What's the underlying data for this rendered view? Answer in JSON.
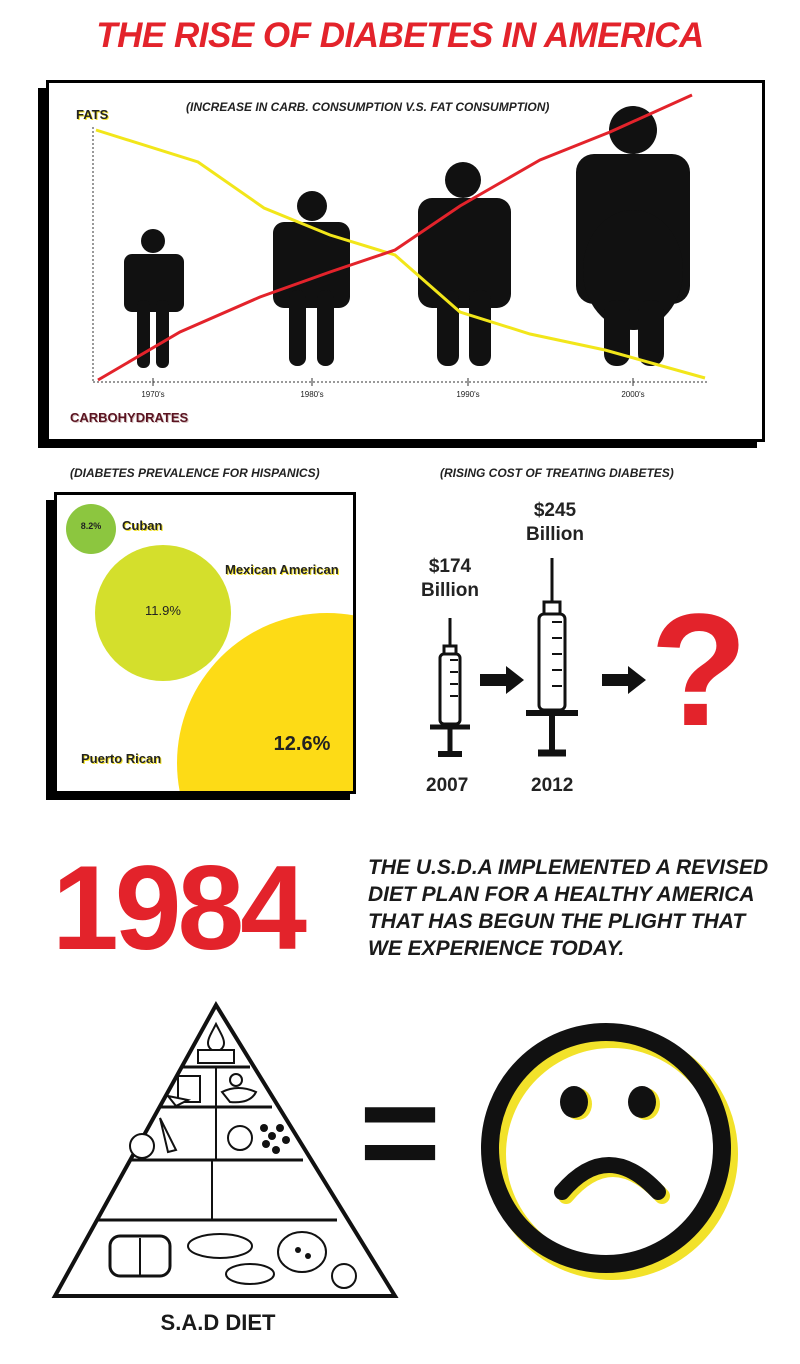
{
  "title": "THE RISE OF DIABETES IN AMERICA",
  "colors": {
    "red": "#e3232b",
    "yellow": "#f2e61a",
    "lime": "#d4df2c",
    "green": "#8cc63f",
    "gold": "#fddb16"
  },
  "trend_chart": {
    "subtitle": "(INCREASE IN CARB. CONSUMPTION V.S. FAT CONSUMPTION)",
    "label_fats": "FATS",
    "label_carbs": "CARBOHYDRATES",
    "ticks": [
      "1970's",
      "1980's",
      "1990's",
      "2000's"
    ]
  },
  "hispanic": {
    "caption": "(DIABETES PREVALENCE FOR HISPANICS)",
    "groups": [
      {
        "name": "Cuban",
        "value": "8.2%"
      },
      {
        "name": "Mexican American",
        "value": "11.9%"
      },
      {
        "name": "Puerto Rican",
        "value": "12.6%"
      }
    ]
  },
  "cost": {
    "caption": "(RISING COST OF TREATING DIABETES)",
    "items": [
      {
        "amount": "$174",
        "unit": "Billion",
        "year": "2007"
      },
      {
        "amount": "$245",
        "unit": "Billion",
        "year": "2012"
      }
    ],
    "unknown": "?"
  },
  "usda": {
    "year": "1984",
    "text": "THE U.S.D.A IMPLEMENTED A REVISED DIET PLAN FOR A HEALTHY AMERICA THAT HAS BEGUN THE PLIGHT THAT WE EXPERIENCE TODAY."
  },
  "diet": {
    "label": "S.A.D DIET",
    "equals": "="
  }
}
